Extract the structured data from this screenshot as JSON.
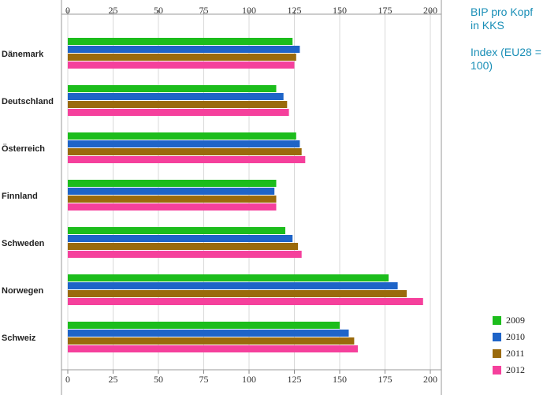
{
  "title": {
    "line1": "BIP pro Kopf",
    "line2": "in KKS",
    "line3": "Index (EU28 =",
    "line4": "100)"
  },
  "chart_data": {
    "type": "bar",
    "orientation": "horizontal",
    "categories": [
      "Dänemark",
      "Deutschland",
      "Österreich",
      "Finnland",
      "Schweden",
      "Norwegen",
      "Schweiz"
    ],
    "series": [
      {
        "name": "2009",
        "color": "#1cbd1c",
        "values": [
          124,
          115,
          126,
          115,
          120,
          177,
          150
        ]
      },
      {
        "name": "2010",
        "color": "#1e64c8",
        "values": [
          128,
          119,
          128,
          114,
          124,
          182,
          155
        ]
      },
      {
        "name": "2011",
        "color": "#9a6a0c",
        "values": [
          126,
          121,
          129,
          115,
          127,
          187,
          158
        ]
      },
      {
        "name": "2012",
        "color": "#f5409c",
        "values": [
          125,
          122,
          131,
          115,
          129,
          196,
          160
        ]
      }
    ],
    "xlim": [
      0,
      200
    ],
    "xticks": [
      0,
      25,
      50,
      75,
      100,
      125,
      150,
      175,
      200
    ],
    "grid": true,
    "legend_position": "bottom-right"
  }
}
